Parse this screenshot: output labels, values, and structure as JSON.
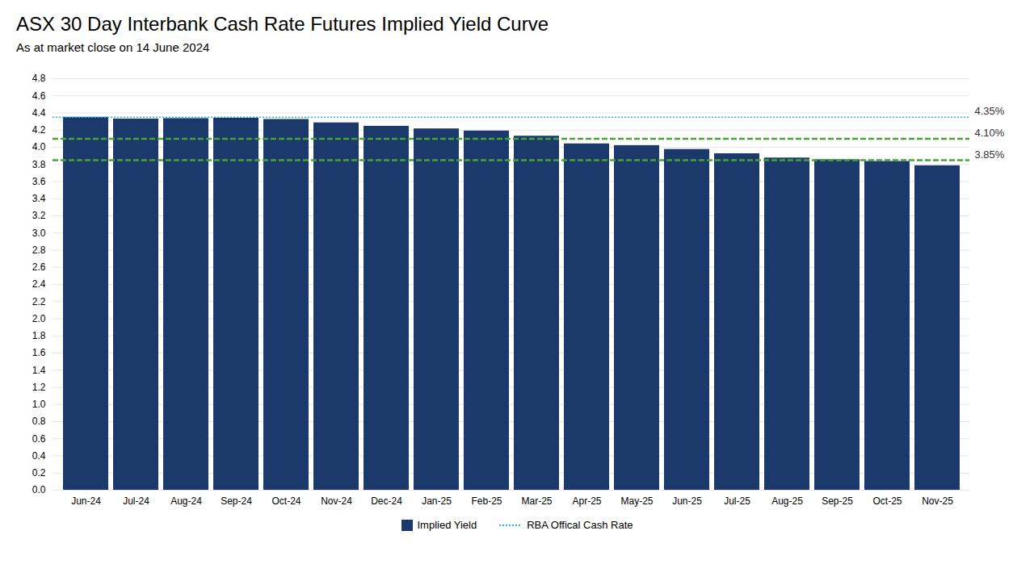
{
  "chart_data": {
    "type": "bar",
    "title": "ASX 30 Day Interbank Cash Rate Futures Implied Yield Curve",
    "subtitle": "As at market close on 14 June 2024",
    "categories": [
      "Jun-24",
      "Jul-24",
      "Aug-24",
      "Sep-24",
      "Oct-24",
      "Nov-24",
      "Dec-24",
      "Jan-25",
      "Feb-25",
      "Mar-25",
      "Apr-25",
      "May-25",
      "Jun-25",
      "Jul-25",
      "Aug-25",
      "Sep-25",
      "Oct-25",
      "Nov-25"
    ],
    "series": [
      {
        "name": "Implied Yield",
        "color": "#1b3a6b",
        "values": [
          4.35,
          4.33,
          4.335,
          4.34,
          4.325,
          4.285,
          4.245,
          4.215,
          4.19,
          4.13,
          4.04,
          4.02,
          3.975,
          3.925,
          3.875,
          3.855,
          3.835,
          3.785
        ]
      }
    ],
    "reference_lines": [
      {
        "name": "RBA Offical Cash Rate",
        "value": 4.35,
        "label": "4.35%",
        "color": "#29b6f6",
        "line_style": "dotted"
      },
      {
        "value": 4.1,
        "label": "4.10%",
        "color": "#43a832",
        "line_style": "dashed"
      },
      {
        "value": 3.85,
        "label": "3.85%",
        "color": "#43a832",
        "line_style": "dashed"
      }
    ],
    "ylim": [
      0,
      4.8
    ],
    "yticks": [
      {
        "value": 0.0,
        "label": "0.0"
      },
      0.2,
      0.4,
      0.6,
      0.8,
      {
        "value": 1.0,
        "label": "1.0"
      },
      1.2,
      1.4,
      1.6,
      1.8,
      {
        "value": 2.0,
        "label": "2.0"
      },
      2.2,
      2.4,
      2.6,
      2.8,
      {
        "value": 3.0,
        "label": "3.0"
      },
      3.2,
      3.4,
      3.6,
      3.8,
      {
        "value": 4.0,
        "label": "4.0"
      },
      4.2,
      4.4,
      4.6,
      4.8
    ],
    "grid": true,
    "legend": "bottom"
  }
}
